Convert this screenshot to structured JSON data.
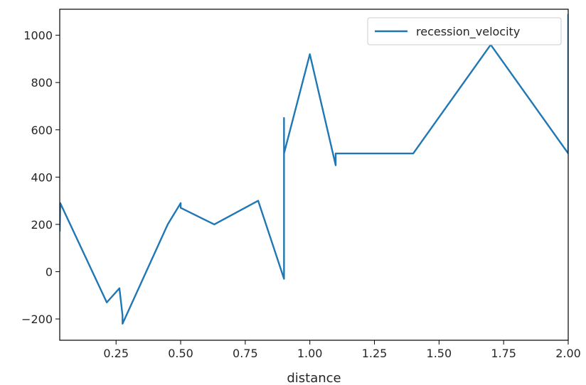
{
  "chart_data": {
    "type": "line",
    "title": "",
    "xlabel": "distance",
    "ylabel": "",
    "xlim": [
      0.032,
      2.0
    ],
    "ylim": [
      -290,
      1110
    ],
    "x_ticks": [
      0.25,
      0.5,
      0.75,
      1.0,
      1.25,
      1.5,
      1.75,
      2.0
    ],
    "x_tick_labels": [
      "0.25",
      "0.50",
      "0.75",
      "1.00",
      "1.25",
      "1.50",
      "1.75",
      "2.00"
    ],
    "y_ticks": [
      -200,
      0,
      200,
      400,
      600,
      800,
      1000
    ],
    "y_tick_labels": [
      "−200",
      "0",
      "200",
      "400",
      "600",
      "800",
      "1000"
    ],
    "grid": false,
    "legend_position": "top-right",
    "series": [
      {
        "name": "recession_velocity",
        "color": "#1f77b4",
        "x": [
          0.032,
          0.034,
          0.214,
          0.263,
          0.275,
          0.275,
          0.45,
          0.5,
          0.5,
          0.63,
          0.8,
          0.9,
          0.9,
          0.9,
          0.9,
          0.9,
          1.0,
          1.1,
          1.1,
          1.4,
          1.7,
          2.0,
          2.0,
          2.0,
          2.0
        ],
        "y": [
          170,
          290,
          -130,
          -70,
          -185,
          -220,
          200,
          290,
          270,
          200,
          300,
          -30,
          650,
          500,
          150,
          500,
          920,
          450,
          500,
          500,
          960,
          500,
          850,
          800,
          1090
        ]
      }
    ]
  }
}
